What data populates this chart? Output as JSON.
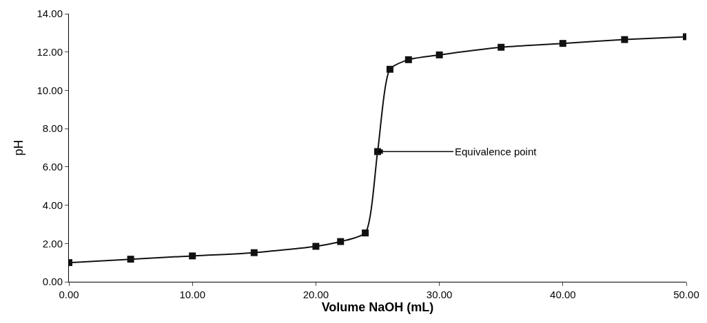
{
  "chart_data": {
    "type": "line",
    "xlabel": "Volume NaOH (mL)",
    "ylabel": "pH",
    "x": [
      0,
      5,
      10,
      15,
      20,
      22,
      24,
      25,
      26,
      27.5,
      30,
      35,
      40,
      45,
      50
    ],
    "series": [
      {
        "color": "#111111",
        "values": [
          1.0,
          1.18,
          1.35,
          1.52,
          1.85,
          2.1,
          2.55,
          6.8,
          11.1,
          11.6,
          11.85,
          12.25,
          12.45,
          12.65,
          12.8
        ]
      }
    ],
    "xlim": [
      0,
      50
    ],
    "ylim": [
      0,
      14
    ],
    "xticks": [
      {
        "value": 0,
        "label": "0.00"
      },
      {
        "value": 10,
        "label": "10.00"
      },
      {
        "value": 20,
        "label": "20.00"
      },
      {
        "value": 30,
        "label": "30.00"
      },
      {
        "value": 40,
        "label": "40.00"
      },
      {
        "value": 50,
        "label": "50.00"
      }
    ],
    "yticks": [
      {
        "value": 0,
        "label": "0.00"
      },
      {
        "value": 2,
        "label": "2.00"
      },
      {
        "value": 4,
        "label": "4.00"
      },
      {
        "value": 6,
        "label": "6.00"
      },
      {
        "value": 8,
        "label": "8.00"
      },
      {
        "value": 10,
        "label": "10.00"
      },
      {
        "value": 12,
        "label": "12.00"
      },
      {
        "value": 14,
        "label": "14.00"
      }
    ],
    "annotations": [
      {
        "text": "Equivalence point",
        "x": 25,
        "y": 6.8
      }
    ],
    "marker": "square",
    "line_style": "solid"
  }
}
